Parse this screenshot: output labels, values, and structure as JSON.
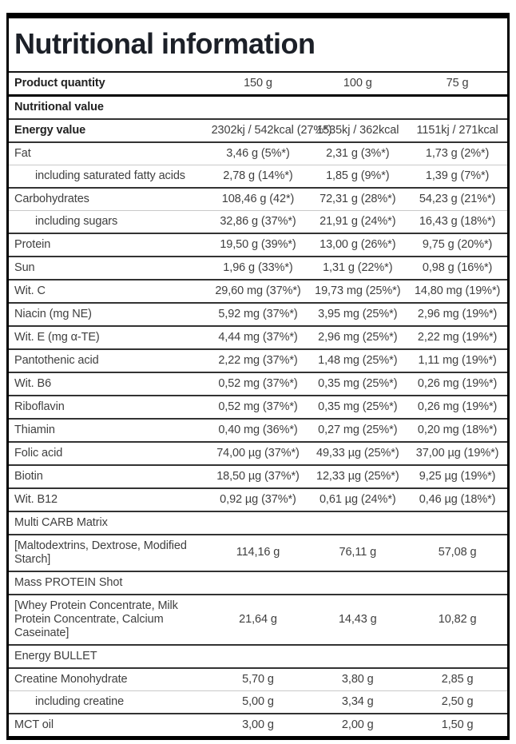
{
  "title": "Nutritional information",
  "table": {
    "product_quantity_label": "Product quantity",
    "quantity_columns": [
      "150 g",
      "100 g",
      "75 g"
    ],
    "rows": [
      {
        "type": "section-bold",
        "label": "Nutritional value",
        "values": [
          "",
          "",
          ""
        ]
      },
      {
        "type": "bold",
        "label": "Energy value",
        "values": [
          "2302kj / 542kcal (27%*)",
          "1535kj / 362kcal",
          "1151kj / 271kcal"
        ]
      },
      {
        "type": "main",
        "label": "Fat",
        "values": [
          "3,46 g (5%*)",
          "2,31 g (3%*)",
          "1,73 g (2%*)"
        ]
      },
      {
        "type": "sub",
        "label": "including saturated fatty acids",
        "values": [
          "2,78 g (14%*)",
          "1,85 g (9%*)",
          "1,39 g (7%*)"
        ]
      },
      {
        "type": "main",
        "label": "Carbohydrates",
        "values": [
          "108,46 g (42*)",
          "72,31 g (28%*)",
          "54,23 g (21%*)"
        ]
      },
      {
        "type": "sub",
        "label": "including sugars",
        "values": [
          "32,86 g (37%*)",
          "21,91 g (24%*)",
          "16,43 g (18%*)"
        ]
      },
      {
        "type": "main",
        "label": "Protein",
        "values": [
          "19,50 g (39%*)",
          "13,00 g (26%*)",
          "9,75 g (20%*)"
        ]
      },
      {
        "type": "main",
        "label": "Sun",
        "values": [
          "1,96 g (33%*)",
          "1,31 g (22%*)",
          "0,98 g (16%*)"
        ]
      },
      {
        "type": "main",
        "label": "Wit. C",
        "values": [
          "29,60 mg (37%*)",
          "19,73 mg (25%*)",
          "14,80 mg (19%*)"
        ]
      },
      {
        "type": "main",
        "label": "Niacin (mg NE)",
        "values": [
          "5,92 mg (37%*)",
          "3,95 mg (25%*)",
          "2,96 mg (19%*)"
        ]
      },
      {
        "type": "main",
        "label": "Wit. E (mg α-TE)",
        "values": [
          "4,44 mg (37%*)",
          "2,96 mg (25%*)",
          "2,22 mg (19%*)"
        ]
      },
      {
        "type": "main",
        "label": "Pantothenic acid",
        "values": [
          "2,22 mg (37%*)",
          "1,48 mg (25%*)",
          "1,11 mg (19%*)"
        ]
      },
      {
        "type": "main",
        "label": "Wit. B6",
        "values": [
          "0,52 mg (37%*)",
          "0,35 mg (25%*)",
          "0,26 mg (19%*)"
        ]
      },
      {
        "type": "main",
        "label": "Riboflavin",
        "values": [
          "0,52 mg (37%*)",
          "0,35 mg (25%*)",
          "0,26 mg (19%*)"
        ]
      },
      {
        "type": "main",
        "label": "Thiamin",
        "values": [
          "0,40 mg (36%*)",
          "0,27 mg (25%*)",
          "0,20 mg (18%*)"
        ]
      },
      {
        "type": "main",
        "label": "Folic acid",
        "values": [
          "74,00 µg (37%*)",
          "49,33 µg (25%*)",
          "37,00 µg (19%*)"
        ]
      },
      {
        "type": "main",
        "label": "Biotin",
        "values": [
          "18,50 µg (37%*)",
          "12,33 µg (25%*)",
          "9,25 µg (19%*)"
        ]
      },
      {
        "type": "main",
        "label": "Wit. B12",
        "values": [
          "0,92 µg (37%*)",
          "0,61 µg (24%*)",
          "0,46 µg (18%*)"
        ]
      },
      {
        "type": "main",
        "label": "Multi CARB Matrix",
        "values": [
          "",
          "",
          ""
        ]
      },
      {
        "type": "main",
        "label": "[Maltodextrins, Dextrose, Modified Starch]",
        "values": [
          "114,16 g",
          "76,11 g",
          "57,08 g"
        ]
      },
      {
        "type": "main",
        "label": "Mass PROTEIN Shot",
        "values": [
          "",
          "",
          ""
        ]
      },
      {
        "type": "main",
        "label": "[Whey Protein Concentrate, Milk Protein Concentrate, Calcium Caseinate]",
        "values": [
          "21,64 g",
          "14,43 g",
          "10,82 g"
        ]
      },
      {
        "type": "main",
        "label": "Energy BULLET",
        "values": [
          "",
          "",
          ""
        ]
      },
      {
        "type": "main",
        "label": "Creatine Monohydrate",
        "values": [
          "5,70 g",
          "3,80 g",
          "2,85 g"
        ]
      },
      {
        "type": "sub",
        "label": "including creatine",
        "values": [
          "5,00 g",
          "3,34 g",
          "2,50 g"
        ]
      },
      {
        "type": "main",
        "label": "MCT oil",
        "values": [
          "3,00 g",
          "2,00 g",
          "1,50 g"
        ]
      }
    ]
  }
}
